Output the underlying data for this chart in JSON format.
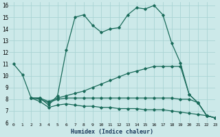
{
  "xlabel": "Humidex (Indice chaleur)",
  "xlim": [
    -0.5,
    23
  ],
  "ylim": [
    6,
    16.3
  ],
  "yticks": [
    6,
    7,
    8,
    9,
    10,
    11,
    12,
    13,
    14,
    15,
    16
  ],
  "xticks": [
    0,
    1,
    2,
    3,
    4,
    5,
    6,
    7,
    8,
    9,
    10,
    11,
    12,
    13,
    14,
    15,
    16,
    17,
    18,
    19,
    20,
    21,
    22,
    23
  ],
  "background_color": "#cce9e9",
  "grid_color": "#aad4d4",
  "line_color": "#1a6b5a",
  "curves": [
    {
      "x": [
        0,
        1,
        2,
        3,
        4,
        5,
        6,
        7,
        8,
        9,
        10,
        11,
        12,
        13,
        14,
        15,
        16,
        17,
        18,
        19,
        20,
        21,
        22,
        23
      ],
      "y": [
        11.0,
        10.1,
        8.1,
        8.1,
        7.5,
        8.3,
        12.2,
        15.0,
        15.2,
        14.3,
        13.7,
        14.0,
        14.1,
        15.2,
        15.8,
        15.7,
        16.0,
        15.2,
        12.8,
        11.1,
        8.4,
        7.7,
        6.6,
        6.4
      ]
    },
    {
      "x": [
        2,
        3,
        4,
        5,
        6,
        7,
        8,
        9,
        10,
        11,
        12,
        13,
        14,
        15,
        16,
        17,
        18,
        19,
        20,
        21,
        22,
        23
      ],
      "y": [
        8.1,
        8.1,
        7.8,
        8.1,
        8.3,
        8.5,
        8.7,
        9.0,
        9.3,
        9.6,
        9.9,
        10.2,
        10.4,
        10.6,
        10.8,
        10.8,
        10.8,
        10.8,
        8.4,
        7.7,
        6.6,
        6.4
      ]
    },
    {
      "x": [
        2,
        3,
        4,
        5,
        6,
        7,
        8,
        9,
        10,
        11,
        12,
        13,
        14,
        15,
        16,
        17,
        18,
        19,
        20,
        21,
        22,
        23
      ],
      "y": [
        8.1,
        8.0,
        7.7,
        8.0,
        8.1,
        8.1,
        8.1,
        8.1,
        8.1,
        8.1,
        8.1,
        8.1,
        8.1,
        8.1,
        8.1,
        8.1,
        8.1,
        8.0,
        8.0,
        7.7,
        6.6,
        6.4
      ]
    },
    {
      "x": [
        2,
        3,
        4,
        5,
        6,
        7,
        8,
        9,
        10,
        11,
        12,
        13,
        14,
        15,
        16,
        17,
        18,
        19,
        20,
        21,
        22,
        23
      ],
      "y": [
        8.1,
        7.8,
        7.3,
        7.5,
        7.6,
        7.5,
        7.4,
        7.4,
        7.3,
        7.3,
        7.2,
        7.2,
        7.2,
        7.1,
        7.1,
        7.1,
        7.0,
        6.9,
        6.8,
        6.7,
        6.6,
        6.4
      ]
    }
  ]
}
